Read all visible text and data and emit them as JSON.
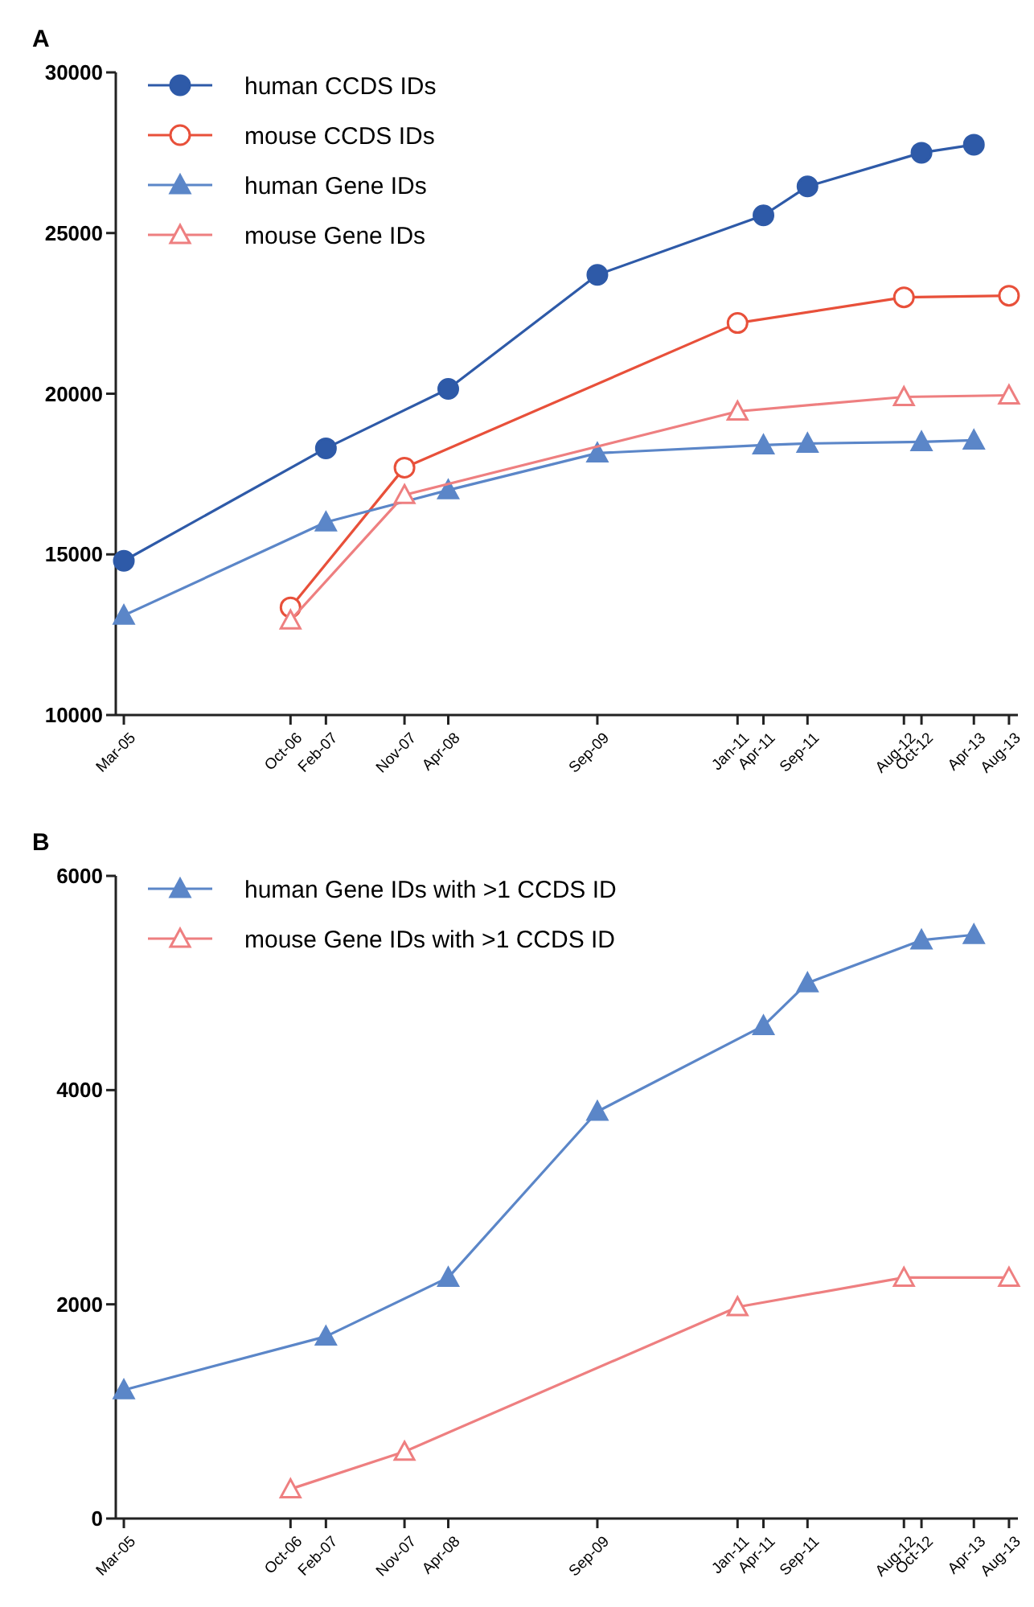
{
  "chart_data": [
    {
      "type": "line",
      "title": "A",
      "legend": "top left",
      "xlim": [
        "2005-02",
        "2013-09"
      ],
      "xticks": [
        {
          "value": "2005-03",
          "label": "Mar-05"
        },
        {
          "value": "2006-10",
          "label": "Oct-06"
        },
        {
          "value": "2007-02",
          "label": "Feb-07"
        },
        {
          "value": "2007-11",
          "label": "Nov-07"
        },
        {
          "value": "2008-04",
          "label": "Apr-08"
        },
        {
          "value": "2009-09",
          "label": "Sep-09"
        },
        {
          "value": "2011-01",
          "label": "Jan-11"
        },
        {
          "value": "2011-04",
          "label": "Apr-11"
        },
        {
          "value": "2011-09",
          "label": "Sep-11"
        },
        {
          "value": "2012-08",
          "label": "Aug-12"
        },
        {
          "value": "2012-10",
          "label": "Oct-12"
        },
        {
          "value": "2013-04",
          "label": "Apr-13"
        },
        {
          "value": "2013-08",
          "label": "Aug-13"
        }
      ],
      "ylim": [
        10000,
        30000
      ],
      "yticks": [
        10000,
        15000,
        20000,
        25000,
        30000
      ],
      "series": [
        {
          "name": "human CCDS IDs",
          "color": "#2e5aa8",
          "marker": "circle",
          "x": [
            "2005-03",
            "2007-02",
            "2008-04",
            "2009-09",
            "2011-04",
            "2011-09",
            "2012-10",
            "2013-04"
          ],
          "values": [
            14800,
            18300,
            20150,
            23700,
            25550,
            26450,
            27500,
            27750
          ]
        },
        {
          "name": "mouse CCDS IDs",
          "color": "#e8503a",
          "marker": "circle-open",
          "x": [
            "2006-10",
            "2007-11",
            "2011-01",
            "2012-08",
            "2013-08"
          ],
          "values": [
            13350,
            17700,
            22200,
            23000,
            23050
          ]
        },
        {
          "name": "human Gene IDs",
          "color": "#5b86c8",
          "marker": "triangle",
          "x": [
            "2005-03",
            "2007-02",
            "2008-04",
            "2009-09",
            "2011-04",
            "2011-09",
            "2012-10",
            "2013-04"
          ],
          "values": [
            13100,
            16000,
            17000,
            18150,
            18400,
            18450,
            18500,
            18550
          ]
        },
        {
          "name": "mouse Gene IDs",
          "color": "#ee7f80",
          "marker": "triangle-open",
          "x": [
            "2006-10",
            "2007-11",
            "2011-01",
            "2012-08",
            "2013-08"
          ],
          "values": [
            12950,
            16850,
            19450,
            19900,
            19950
          ]
        }
      ]
    },
    {
      "type": "line",
      "title": "B",
      "legend": "top left",
      "xlim": [
        "2005-02",
        "2013-09"
      ],
      "xticks": [
        {
          "value": "2005-03",
          "label": "Mar-05"
        },
        {
          "value": "2006-10",
          "label": "Oct-06"
        },
        {
          "value": "2007-02",
          "label": "Feb-07"
        },
        {
          "value": "2007-11",
          "label": "Nov-07"
        },
        {
          "value": "2008-04",
          "label": "Apr-08"
        },
        {
          "value": "2009-09",
          "label": "Sep-09"
        },
        {
          "value": "2011-01",
          "label": "Jan-11"
        },
        {
          "value": "2011-04",
          "label": "Apr-11"
        },
        {
          "value": "2011-09",
          "label": "Sep-11"
        },
        {
          "value": "2012-08",
          "label": "Aug-12"
        },
        {
          "value": "2012-10",
          "label": "Oct-12"
        },
        {
          "value": "2013-04",
          "label": "Apr-13"
        },
        {
          "value": "2013-08",
          "label": "Aug-13"
        }
      ],
      "ylim": [
        0,
        6000
      ],
      "yticks": [
        0,
        2000,
        4000,
        6000
      ],
      "series": [
        {
          "name": "human Gene IDs with >1 CCDS ID",
          "color": "#5b86c8",
          "marker": "triangle",
          "x": [
            "2005-03",
            "2007-02",
            "2008-04",
            "2009-09",
            "2011-04",
            "2011-09",
            "2012-10",
            "2013-04"
          ],
          "values": [
            1200,
            1700,
            2250,
            3800,
            4600,
            5000,
            5400,
            5450
          ]
        },
        {
          "name": "mouse Gene IDs with >1 CCDS ID",
          "color": "#ee7f80",
          "marker": "triangle-open",
          "x": [
            "2006-10",
            "2007-11",
            "2011-01",
            "2012-08",
            "2013-08"
          ],
          "values": [
            275,
            625,
            1975,
            2250,
            2250
          ]
        }
      ]
    }
  ]
}
